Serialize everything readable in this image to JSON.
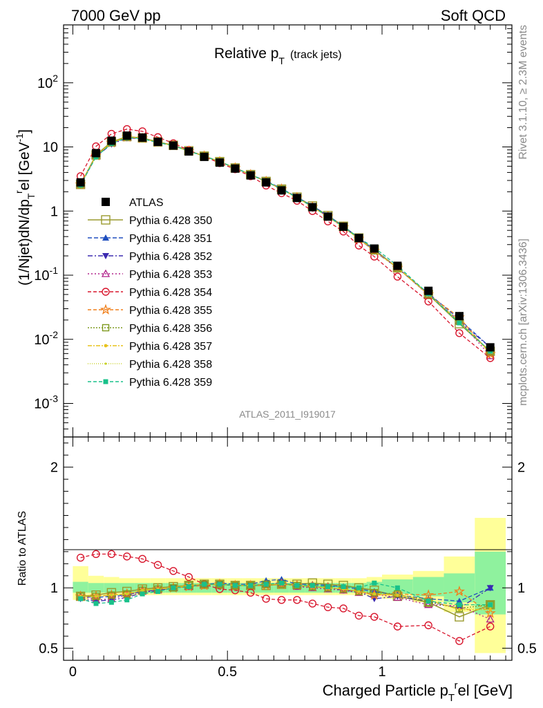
{
  "header": {
    "left": "7000 GeV pp",
    "right": "Soft QCD"
  },
  "side_text": {
    "rivet": "Rivet 3.1.10, ≥ 2.3M events",
    "mcplots": "mcplots.cern.ch [arXiv:1306.3436]"
  },
  "watermark": "ATLAS_2011_I919017",
  "chart_data": [
    {
      "type": "line",
      "title": "Relative p_T (track jets)",
      "title_main": "Relative p",
      "title_sub": "T",
      "title_note": "(track jets)",
      "ylabel": "(1/Njet)dN/dp_T^rel [GeV^-1]",
      "yscale": "log",
      "ylim": [
        0.0003,
        800
      ],
      "xlim": [
        -0.03,
        1.42
      ],
      "ytick_labels": [
        "10^-3",
        "10^-2",
        "10^-1",
        "1",
        "10",
        "10^2"
      ],
      "x": [
        0.025,
        0.075,
        0.125,
        0.175,
        0.225,
        0.275,
        0.325,
        0.375,
        0.425,
        0.475,
        0.525,
        0.575,
        0.625,
        0.675,
        0.725,
        0.775,
        0.825,
        0.875,
        0.925,
        0.975,
        1.05,
        1.15,
        1.25,
        1.35
      ],
      "data": {
        "name": "ATLAS",
        "values": [
          2.8,
          8.0,
          12.5,
          15.0,
          14.0,
          12.0,
          10.5,
          8.5,
          7.0,
          5.7,
          4.6,
          3.6,
          2.8,
          2.1,
          1.6,
          1.15,
          0.82,
          0.57,
          0.38,
          0.26,
          0.14,
          0.057,
          0.023,
          0.0075
        ]
      },
      "series": [
        {
          "name": "Pythia 6.428 350",
          "color": "#9a9a2e",
          "marker": "open-square-large",
          "dash": "solid",
          "values": [
            2.6,
            7.5,
            12.0,
            14.5,
            13.8,
            12.0,
            10.6,
            8.7,
            7.2,
            5.9,
            4.7,
            3.7,
            2.9,
            2.2,
            1.65,
            1.2,
            0.85,
            0.58,
            0.38,
            0.25,
            0.13,
            0.05,
            0.0175,
            0.0065
          ]
        },
        {
          "name": "Pythia 6.428 351",
          "color": "#1f4fbf",
          "marker": "triangle-up",
          "dash": "6 3",
          "values": [
            2.6,
            7.3,
            11.5,
            14.0,
            13.6,
            11.8,
            10.5,
            8.6,
            7.2,
            5.9,
            4.7,
            3.7,
            2.95,
            2.25,
            1.65,
            1.2,
            0.85,
            0.58,
            0.38,
            0.25,
            0.13,
            0.052,
            0.0205,
            0.0075
          ]
        },
        {
          "name": "Pythia 6.428 352",
          "color": "#3c2ab0",
          "marker": "triangle-down",
          "dash": "7 3 2 3",
          "values": [
            2.55,
            7.1,
            11.0,
            13.8,
            13.4,
            11.7,
            10.5,
            8.6,
            7.2,
            5.9,
            4.7,
            3.7,
            2.9,
            2.2,
            1.62,
            1.17,
            0.82,
            0.56,
            0.37,
            0.235,
            0.13,
            0.05,
            0.019,
            0.0075
          ]
        },
        {
          "name": "Pythia 6.428 353",
          "color": "#b0208a",
          "marker": "open-triangle-up",
          "dash": "2 3",
          "values": [
            2.6,
            7.2,
            11.4,
            14.1,
            13.5,
            11.8,
            10.5,
            8.6,
            7.2,
            5.9,
            4.7,
            3.7,
            2.9,
            2.2,
            1.62,
            1.16,
            0.82,
            0.56,
            0.37,
            0.24,
            0.13,
            0.049,
            0.0195,
            0.0055
          ]
        },
        {
          "name": "Pythia 6.428 354",
          "color": "#d8152c",
          "marker": "open-circle",
          "dash": "5 3",
          "values": [
            3.5,
            10.2,
            16.0,
            19.0,
            17.5,
            14.2,
            11.4,
            8.9,
            7.1,
            5.6,
            4.5,
            3.5,
            2.5,
            1.9,
            1.45,
            1.0,
            0.69,
            0.48,
            0.29,
            0.195,
            0.095,
            0.039,
            0.0125,
            0.0051
          ]
        },
        {
          "name": "Pythia 6.428 355",
          "color": "#f07f1a",
          "marker": "open-star",
          "dash": "5 3",
          "values": [
            2.6,
            7.3,
            11.6,
            14.3,
            13.6,
            11.8,
            10.5,
            8.6,
            7.2,
            5.9,
            4.7,
            3.7,
            2.9,
            2.2,
            1.62,
            1.16,
            0.82,
            0.56,
            0.37,
            0.24,
            0.13,
            0.05,
            0.022,
            0.0059
          ]
        },
        {
          "name": "Pythia 6.428 356",
          "color": "#7e9a1e",
          "marker": "open-square",
          "dash": "2 2",
          "values": [
            2.6,
            7.3,
            11.6,
            14.3,
            13.6,
            11.8,
            10.5,
            8.6,
            7.2,
            5.9,
            4.7,
            3.7,
            2.9,
            2.2,
            1.62,
            1.16,
            0.82,
            0.56,
            0.37,
            0.24,
            0.13,
            0.05,
            0.019,
            0.0064
          ]
        },
        {
          "name": "Pythia 6.428 357",
          "color": "#e8c21a",
          "marker": "small-dot",
          "dash": "6 2 2 2",
          "values": [
            2.6,
            7.3,
            11.6,
            14.3,
            13.6,
            11.8,
            10.5,
            8.6,
            7.2,
            5.9,
            4.7,
            3.7,
            2.9,
            2.2,
            1.62,
            1.16,
            0.82,
            0.56,
            0.37,
            0.24,
            0.13,
            0.05,
            0.019,
            0.0062
          ]
        },
        {
          "name": "Pythia 6.428 358",
          "color": "#c8d22a",
          "marker": "tiny-dot",
          "dash": "1 2",
          "values": [
            2.6,
            7.3,
            11.6,
            14.3,
            13.6,
            11.8,
            10.5,
            8.6,
            7.2,
            5.9,
            4.7,
            3.7,
            2.9,
            2.2,
            1.62,
            1.16,
            0.82,
            0.56,
            0.37,
            0.24,
            0.13,
            0.05,
            0.019,
            0.0063
          ]
        },
        {
          "name": "Pythia 6.428 359",
          "color": "#19c18a",
          "marker": "filled-square-small",
          "dash": "5 3",
          "values": [
            2.55,
            7.0,
            11.3,
            14.0,
            13.5,
            11.7,
            10.5,
            8.6,
            7.2,
            5.9,
            4.7,
            3.7,
            2.9,
            2.2,
            1.62,
            1.17,
            0.83,
            0.57,
            0.38,
            0.27,
            0.14,
            0.051,
            0.018,
            0.0065
          ]
        }
      ]
    },
    {
      "type": "line",
      "title": "",
      "ylabel": "Ratio to ATLAS",
      "xlabel": "Charged Particle p_T^rel [GeV]",
      "ylim": [
        0.4,
        2.25
      ],
      "xlim": [
        -0.03,
        1.42
      ],
      "ytick_labels": [
        "0.5",
        "1",
        "2"
      ],
      "xtick_labels": [
        "0",
        "0.5",
        "1"
      ],
      "x_edges": [
        0,
        0.05,
        0.1,
        0.15,
        0.2,
        0.25,
        0.3,
        0.35,
        0.4,
        0.45,
        0.5,
        0.55,
        0.6,
        0.65,
        0.7,
        0.75,
        0.8,
        0.85,
        0.9,
        0.95,
        1.0,
        1.1,
        1.2,
        1.3,
        1.4
      ],
      "band_stat_up": [
        1.05,
        1.04,
        1.04,
        1.04,
        1.04,
        1.04,
        1.04,
        1.04,
        1.04,
        1.04,
        1.04,
        1.04,
        1.04,
        1.04,
        1.04,
        1.04,
        1.04,
        1.04,
        1.04,
        1.05,
        1.07,
        1.09,
        1.12,
        1.3
      ],
      "band_stat_down": [
        0.96,
        0.96,
        0.96,
        0.96,
        0.96,
        0.96,
        0.96,
        0.96,
        0.96,
        0.96,
        0.96,
        0.96,
        0.96,
        0.96,
        0.96,
        0.96,
        0.96,
        0.96,
        0.96,
        0.95,
        0.95,
        0.93,
        0.88,
        0.78
      ],
      "band_syst_up": [
        1.18,
        1.1,
        1.09,
        1.08,
        1.08,
        1.08,
        1.08,
        1.08,
        1.08,
        1.08,
        1.08,
        1.08,
        1.08,
        1.08,
        1.08,
        1.08,
        1.08,
        1.08,
        1.08,
        1.09,
        1.11,
        1.14,
        1.26,
        1.58
      ],
      "band_syst_down": [
        0.9,
        0.94,
        0.94,
        0.94,
        0.94,
        0.94,
        0.94,
        0.94,
        0.94,
        0.94,
        0.94,
        0.94,
        0.94,
        0.94,
        0.94,
        0.94,
        0.94,
        0.94,
        0.94,
        0.93,
        0.91,
        0.88,
        0.8,
        0.46
      ],
      "series": [
        {
          "name": "Pythia 6.428 350",
          "values": [
            0.93,
            0.94,
            0.96,
            0.97,
            0.99,
            1.0,
            1.01,
            1.02,
            1.03,
            1.03,
            1.02,
            1.02,
            1.02,
            1.03,
            1.03,
            1.04,
            1.03,
            1.02,
            1.0,
            0.98,
            0.93,
            0.88,
            0.76,
            0.86
          ]
        },
        {
          "name": "Pythia 6.428 351",
          "values": [
            0.93,
            0.92,
            0.93,
            0.94,
            0.97,
            0.98,
            1.0,
            1.01,
            1.03,
            1.04,
            1.03,
            1.03,
            1.06,
            1.07,
            1.03,
            1.03,
            1.02,
            1.01,
            0.99,
            0.97,
            0.94,
            0.91,
            0.89,
            1.0
          ]
        },
        {
          "name": "Pythia 6.428 352",
          "values": [
            0.91,
            0.89,
            0.9,
            0.92,
            0.96,
            0.98,
            1.0,
            1.01,
            1.03,
            1.03,
            1.02,
            1.02,
            1.03,
            1.04,
            1.01,
            1.01,
            1.0,
            0.98,
            0.97,
            0.91,
            0.93,
            0.89,
            0.83,
            1.0
          ]
        },
        {
          "name": "Pythia 6.428 353",
          "values": [
            0.93,
            0.9,
            0.91,
            0.94,
            0.97,
            0.98,
            1.0,
            1.01,
            1.03,
            1.03,
            1.02,
            1.02,
            1.03,
            1.04,
            1.01,
            1.0,
            0.99,
            0.98,
            0.96,
            0.95,
            0.92,
            0.86,
            0.85,
            0.74
          ]
        },
        {
          "name": "Pythia 6.428 354",
          "values": [
            1.25,
            1.28,
            1.28,
            1.26,
            1.24,
            1.19,
            1.14,
            1.09,
            1.03,
            0.99,
            0.98,
            0.96,
            0.91,
            0.9,
            0.9,
            0.87,
            0.84,
            0.83,
            0.77,
            0.76,
            0.68,
            0.69,
            0.56,
            0.68
          ]
        },
        {
          "name": "Pythia 6.428 355",
          "values": [
            0.93,
            0.93,
            0.94,
            0.95,
            0.98,
            0.99,
            1.0,
            1.01,
            1.02,
            1.03,
            1.02,
            1.02,
            1.02,
            1.03,
            1.02,
            1.01,
            1.0,
            0.99,
            0.97,
            0.94,
            0.95,
            0.94,
            0.97,
            0.79
          ]
        },
        {
          "name": "Pythia 6.428 356",
          "values": [
            0.93,
            0.93,
            0.94,
            0.95,
            0.98,
            0.99,
            1.0,
            1.02,
            1.03,
            1.03,
            1.02,
            1.02,
            1.03,
            1.03,
            1.02,
            1.01,
            1.0,
            0.99,
            0.97,
            0.96,
            0.95,
            0.88,
            0.83,
            0.86
          ]
        },
        {
          "name": "Pythia 6.428 357",
          "values": [
            0.93,
            0.93,
            0.94,
            0.95,
            0.98,
            0.99,
            1.0,
            1.02,
            1.03,
            1.03,
            1.02,
            1.02,
            1.03,
            1.03,
            1.02,
            1.01,
            1.0,
            0.99,
            0.97,
            0.95,
            0.94,
            0.9,
            0.82,
            0.82
          ]
        },
        {
          "name": "Pythia 6.428 358",
          "values": [
            0.93,
            0.93,
            0.94,
            0.95,
            0.98,
            0.99,
            1.0,
            1.02,
            1.03,
            1.03,
            1.02,
            1.02,
            1.03,
            1.03,
            1.02,
            1.01,
            1.0,
            0.99,
            0.97,
            0.95,
            0.94,
            0.9,
            0.82,
            0.84
          ]
        },
        {
          "name": "Pythia 6.428 359",
          "values": [
            0.91,
            0.87,
            0.88,
            0.9,
            0.95,
            0.97,
            1.0,
            1.01,
            1.03,
            1.03,
            1.02,
            1.02,
            1.03,
            1.04,
            1.02,
            1.02,
            1.01,
            1.01,
            1.0,
            1.04,
            1.0,
            0.89,
            0.86,
            0.86
          ]
        }
      ]
    }
  ]
}
